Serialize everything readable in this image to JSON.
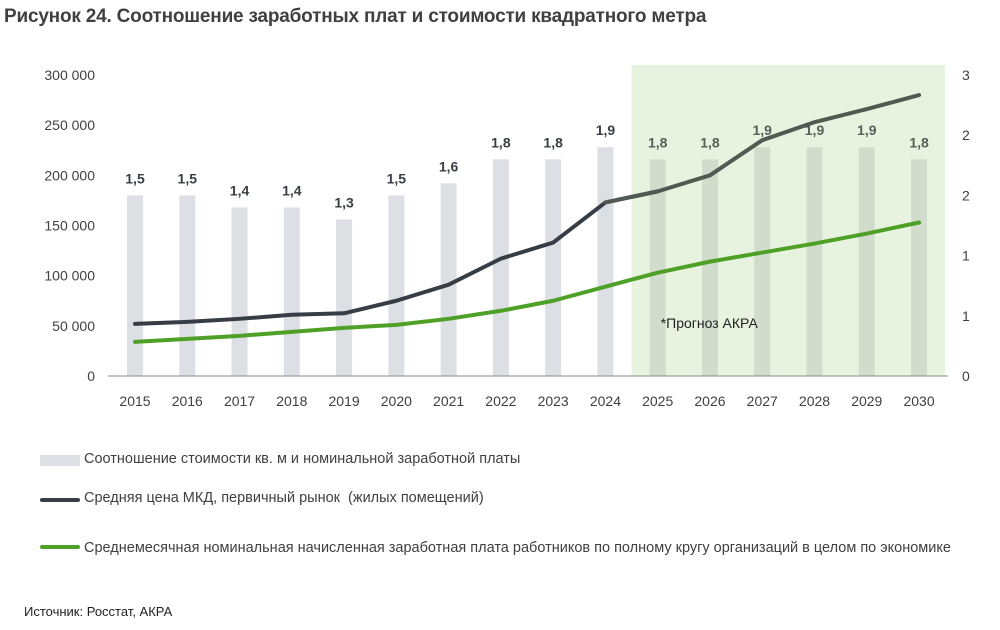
{
  "title": "Рисунок 24. Соотношение заработных плат и стоимости квадратного метра",
  "source": "Источник: Росстат, АКРА",
  "chart_data": {
    "type": "bar+line",
    "categories": [
      "2015",
      "2016",
      "2017",
      "2018",
      "2019",
      "2020",
      "2021",
      "2022",
      "2023",
      "2024",
      "2025",
      "2026",
      "2027",
      "2028",
      "2029",
      "2030"
    ],
    "left_axis": {
      "ylim": [
        0,
        300000
      ],
      "ticks": [
        "0",
        "50 000",
        "100 000",
        "150 000",
        "200 000",
        "250 000",
        "300 000"
      ]
    },
    "right_axis": {
      "ylim": [
        0,
        2.5
      ],
      "ticks": [
        "0",
        "1",
        "1",
        "2",
        "2",
        "3"
      ]
    },
    "grid": false,
    "forecast": {
      "from": "2025",
      "to": "2030",
      "label": "*Прогноз АКРА",
      "shade_color": "#e8f3df"
    },
    "series": [
      {
        "name": "Соотношение стоимости кв. м и номинальной заработной платы",
        "type": "bar",
        "axis": "right",
        "color": "#dcdfe4",
        "forecast_color": "#d2dccd",
        "values": [
          1.5,
          1.5,
          1.4,
          1.4,
          1.3,
          1.5,
          1.6,
          1.8,
          1.8,
          1.9,
          1.8,
          1.8,
          1.9,
          1.9,
          1.9,
          1.8
        ],
        "labels": [
          "1,5",
          "1,5",
          "1,4",
          "1,4",
          "1,3",
          "1,5",
          "1,6",
          "1,8",
          "1,8",
          "1,9",
          "1,8",
          "1,8",
          "1,9",
          "1,9",
          "1,9",
          "1,8"
        ]
      },
      {
        "name": "Средняя цена МКД, первичный рынок  (жилых помещений)",
        "type": "line",
        "axis": "left",
        "color": "#363d45",
        "forecast_color": "#505a52",
        "values": [
          52000,
          54000,
          57000,
          61000,
          62500,
          75000,
          91000,
          117000,
          133000,
          173000,
          184000,
          200000,
          235000,
          253000,
          266000,
          280000
        ]
      },
      {
        "name": "Среднемесячная номинальная начисленная заработная плата работников по полному кругу организаций в целом по экономике",
        "type": "line",
        "axis": "left",
        "color": "#4fa027",
        "values": [
          34000,
          37000,
          40000,
          44000,
          48000,
          51000,
          57000,
          65000,
          75000,
          89000,
          103000,
          114000,
          123000,
          132000,
          142000,
          153000
        ]
      }
    ],
    "legend": "bottom"
  }
}
